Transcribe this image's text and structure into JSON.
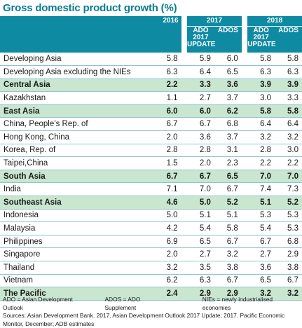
{
  "title": "Gross domestic product growth (%)",
  "header": {
    "col_2016": "2016",
    "group_2017": "2017",
    "group_2018": "2018",
    "ado_update_line1": "ADO",
    "ado_update_line2": "2017",
    "ado_update_line3": "UPDATE",
    "ados": "ADOS"
  },
  "rows": [
    {
      "name": "Developing Asia",
      "region": false,
      "v": [
        "5.8",
        "5.9",
        "6.0",
        "5.8",
        "5.8"
      ]
    },
    {
      "name": "Developing Asia excluding the NIEs",
      "region": false,
      "v": [
        "6.3",
        "6.4",
        "6.5",
        "6.3",
        "6.3"
      ]
    },
    {
      "name": "Central Asia",
      "region": true,
      "v": [
        "2.2",
        "3.3",
        "3.6",
        "3.9",
        "3.9"
      ]
    },
    {
      "name": "Kazakhstan",
      "region": false,
      "v": [
        "1.1",
        "2.7",
        "3.7",
        "3.0",
        "3.3"
      ]
    },
    {
      "name": "East Asia",
      "region": true,
      "v": [
        "6.0",
        "6.0",
        "6.2",
        "5.8",
        "5.8"
      ]
    },
    {
      "name": "China, People’s Rep. of",
      "region": false,
      "v": [
        "6.7",
        "6.7",
        "6.8",
        "6.4",
        "6.4"
      ]
    },
    {
      "name": "Hong Kong, China",
      "region": false,
      "v": [
        "2.0",
        "3.6",
        "3.7",
        "3.2",
        "3.2"
      ]
    },
    {
      "name": "Korea, Rep. of",
      "region": false,
      "v": [
        "2.8",
        "2.8",
        "3.1",
        "2.8",
        "3.0"
      ]
    },
    {
      "name": "Taipei,China",
      "region": false,
      "v": [
        "1.5",
        "2.0",
        "2.3",
        "2.2",
        "2.2"
      ]
    },
    {
      "name": "South Asia",
      "region": true,
      "v": [
        "6.7",
        "6.7",
        "6.5",
        "7.0",
        "7.0"
      ]
    },
    {
      "name": "India",
      "region": false,
      "v": [
        "7.1",
        "7.0",
        "6.7",
        "7.4",
        "7.3"
      ]
    },
    {
      "name": "Southeast Asia",
      "region": true,
      "v": [
        "4.6",
        "5.0",
        "5.2",
        "5.1",
        "5.2"
      ]
    },
    {
      "name": "Indonesia",
      "region": false,
      "v": [
        "5.0",
        "5.1",
        "5.1",
        "5.3",
        "5.3"
      ]
    },
    {
      "name": "Malaysia",
      "region": false,
      "v": [
        "4.2",
        "5.4",
        "5.8",
        "5.4",
        "5.3"
      ]
    },
    {
      "name": "Philippines",
      "region": false,
      "v": [
        "6.9",
        "6.5",
        "6.7",
        "6.7",
        "6.8"
      ]
    },
    {
      "name": "Singapore",
      "region": false,
      "v": [
        "2.0",
        "2.7",
        "3.2",
        "2.7",
        "2.9"
      ]
    },
    {
      "name": "Thailand",
      "region": false,
      "v": [
        "3.2",
        "3.5",
        "3.8",
        "3.6",
        "3.8"
      ]
    },
    {
      "name": "Vietnam",
      "region": false,
      "v": [
        "6.2",
        "6.3",
        "6.7",
        "6.5",
        "6.7"
      ]
    },
    {
      "name": "The Pacific",
      "region": true,
      "v": [
        "2.4",
        "2.9",
        "2.9",
        "3.2",
        "3.2"
      ]
    }
  ],
  "notes": {
    "abbr_ado": "ADO = Asian Development Outlook",
    "abbr_ados": "ADOS = ADO Supplement",
    "abbr_nies": "NIEs = newly industrialised economies",
    "sources": "Sources: Asian Development Bank. 2017. Asian Development Outlook 2017 Update; 2017. Pacific Economic Monitor, December; ADB estimates"
  },
  "colors": {
    "title": "#0a7d93",
    "header_bg": "#0e8aa3",
    "region_bg": "#c9e6cf",
    "row_rule": "#8fc4cf"
  }
}
